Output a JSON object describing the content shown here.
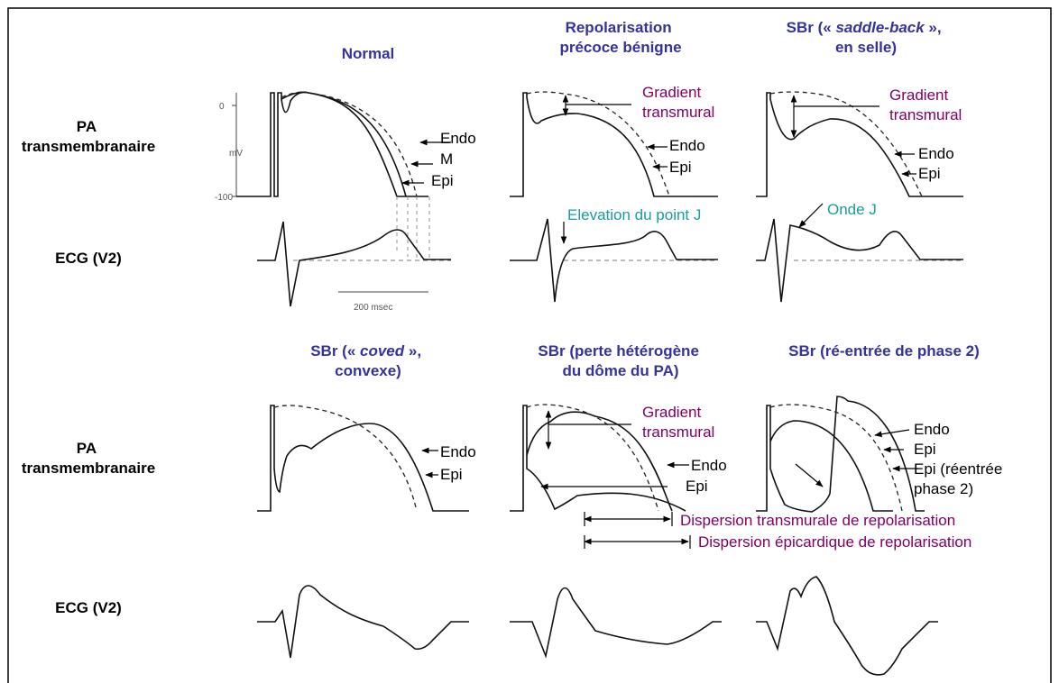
{
  "columns": {
    "normal": [
      "Normal"
    ],
    "repolarisation": [
      "Repolarisation",
      "précoce bénigne"
    ],
    "saddle": {
      "pre": "SBr (« ",
      "italic": "saddle-back",
      "post": " »,",
      "line2": "en selle)"
    },
    "coved": {
      "pre": "SBr (« ",
      "italic": "coved",
      "post": " »,",
      "line2": "convexe)"
    },
    "perte": [
      "SBr (perte hétérogène",
      "du dôme du PA)"
    ],
    "reentree": [
      "SBr (ré-entrée de phase 2)"
    ]
  },
  "rows": {
    "pa": [
      "PA",
      "transmembranaire"
    ],
    "ecg": "ECG (V2)"
  },
  "axis": {
    "zero": "0",
    "unit": "mV",
    "min": "-100",
    "scale": "200 msec"
  },
  "curve_labels": {
    "endo": "Endo",
    "m": "M",
    "epi": "Epi",
    "epi_reentry": [
      "Epi (réentrée",
      "phase 2)"
    ]
  },
  "annotations": {
    "gradient": [
      "Gradient",
      "transmural"
    ],
    "j_point": "Elevation du point J",
    "j_wave": "Onde J",
    "dispersion_transmural": "Dispersion transmurale de repolarisation",
    "dispersion_epicardial": "Dispersion épicardique de repolarisation"
  },
  "colors": {
    "title": "#333399",
    "annotation_purple": "#800066",
    "annotation_teal": "#1a9c9c"
  }
}
